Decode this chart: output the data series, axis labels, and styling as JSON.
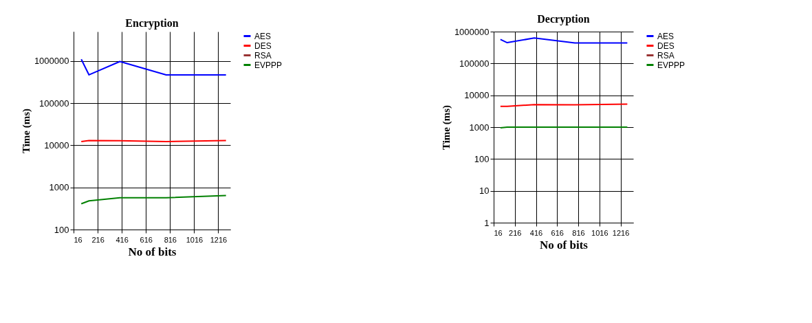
{
  "chart_data": [
    {
      "type": "line",
      "title": "Encryption",
      "xlabel": "No of bits",
      "ylabel": "Time (ms)",
      "x": [
        80,
        144,
        400,
        784,
        1280
      ],
      "xlim": [
        16,
        1316
      ],
      "xticks": [
        16,
        216,
        416,
        616,
        816,
        1016,
        1216
      ],
      "ylim": [
        100,
        5000000
      ],
      "yticks": [
        100,
        1000,
        10000,
        100000,
        1000000
      ],
      "log": "y",
      "grid": true,
      "legend": "top right",
      "series": [
        {
          "name": "AES",
          "color": "#0000ff",
          "values": [
            1100000,
            470000,
            975000,
            470000,
            470000
          ]
        },
        {
          "name": "DES",
          "color": "#ff0000",
          "values": [
            12300,
            13000,
            12800,
            12300,
            13000
          ]
        },
        {
          "name": "RSA",
          "color": "#993333",
          "values": [
            null,
            null,
            null,
            null,
            null
          ]
        },
        {
          "name": "EVPPP",
          "color": "#008000",
          "values": [
            410,
            480,
            570,
            570,
            640
          ]
        }
      ]
    },
    {
      "type": "line",
      "title": "Decryption",
      "xlabel": "No of bits",
      "ylabel": "Time (ms)",
      "x": [
        80,
        144,
        400,
        784,
        1280
      ],
      "xlim": [
        16,
        1336
      ],
      "xticks": [
        16,
        216,
        416,
        616,
        816,
        1016,
        1216
      ],
      "ylim": [
        1,
        1000000
      ],
      "yticks": [
        1,
        10,
        100,
        1000,
        10000,
        100000,
        1000000
      ],
      "log": "y",
      "grid": true,
      "legend": "top right",
      "series": [
        {
          "name": "AES",
          "color": "#0000ff",
          "values": [
            570000,
            450000,
            630000,
            440000,
            440000
          ]
        },
        {
          "name": "DES",
          "color": "#ff0000",
          "values": [
            4500,
            4500,
            5100,
            5000,
            5300
          ]
        },
        {
          "name": "RSA",
          "color": "#993333",
          "values": [
            null,
            null,
            null,
            null,
            null
          ]
        },
        {
          "name": "EVPPP",
          "color": "#008000",
          "values": [
            950,
            1000,
            1000,
            1000,
            1000
          ]
        }
      ]
    }
  ]
}
